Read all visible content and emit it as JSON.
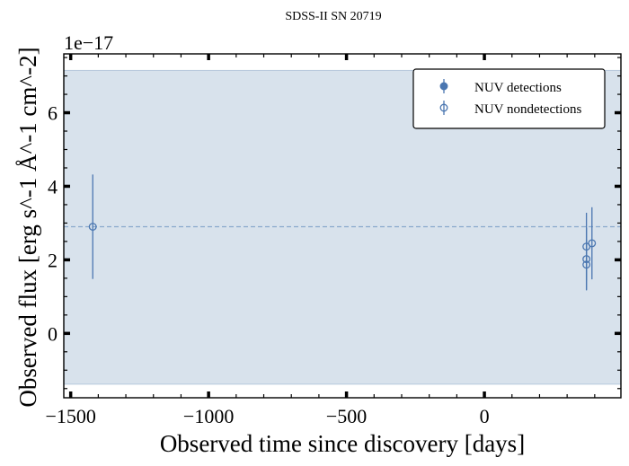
{
  "chart_data": {
    "type": "scatter",
    "title": "SDSS-II SN 20719",
    "xlabel": "Observed time since discovery [days]",
    "ylabel": "Observed flux [erg s^-1 Å^-1 cm^-2]",
    "y_offset_label": "1e−17",
    "xlim": [
      -1525,
      495
    ],
    "ylim": [
      -1.75,
      7.6
    ],
    "xticks": [
      -1500,
      -1000,
      -500,
      0
    ],
    "xtick_labels": [
      "−1500",
      "−1000",
      "−500",
      "0"
    ],
    "yticks": [
      0,
      2,
      4,
      6
    ],
    "ytick_labels": [
      "0",
      "2",
      "4",
      "6"
    ],
    "band": {
      "y0": -1.38,
      "y1": 7.15
    },
    "reference_line_y": 2.9,
    "legend_position": "upper-right",
    "series": [
      {
        "name": "NUV detections",
        "marker": "filled-circle",
        "points": []
      },
      {
        "name": "NUV nondetections",
        "marker": "open-circle",
        "points": [
          {
            "x": -1420,
            "y": 2.9,
            "err": 1.42
          },
          {
            "x": 370,
            "y": 2.36,
            "err": 0.92
          },
          {
            "x": 370,
            "y": 2.02,
            "err": 0.85
          },
          {
            "x": 370,
            "y": 1.87,
            "err": 0.68
          },
          {
            "x": 390,
            "y": 2.45,
            "err": 0.98
          }
        ]
      }
    ],
    "colors": {
      "marker": "#4a76b0",
      "band": "#d8e2ec",
      "band_edge": "#b7c9dc",
      "reference_line": "#8aa9cc"
    }
  }
}
